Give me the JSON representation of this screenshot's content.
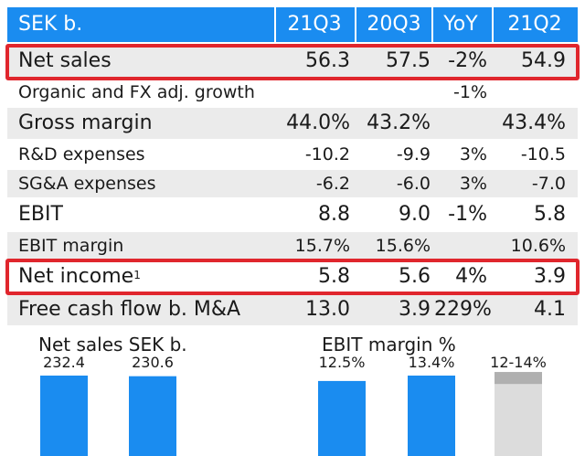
{
  "table": {
    "header": {
      "label": "SEK b.",
      "cols": [
        "21Q3",
        "20Q3",
        "YoY",
        "21Q2"
      ]
    },
    "rows": [
      {
        "label": "Net sales",
        "q3_21": "56.3",
        "q3_20": "57.5",
        "yoy": "-2%",
        "q2_21": "54.9"
      },
      {
        "label": "Organic and FX adj. growth",
        "q3_21": "",
        "q3_20": "",
        "yoy": "-1%",
        "q2_21": ""
      },
      {
        "label": "Gross margin",
        "q3_21": "44.0%",
        "q3_20": "43.2%",
        "yoy": "",
        "q2_21": "43.4%"
      },
      {
        "label": "R&D expenses",
        "q3_21": "-10.2",
        "q3_20": "-9.9",
        "yoy": "3%",
        "q2_21": "-10.5"
      },
      {
        "label": "SG&A expenses",
        "q3_21": "-6.2",
        "q3_20": "-6.0",
        "yoy": "3%",
        "q2_21": "-7.0"
      },
      {
        "label": "EBIT",
        "q3_21": "8.8",
        "q3_20": "9.0",
        "yoy": "-1%",
        "q2_21": "5.8"
      },
      {
        "label": "EBIT margin",
        "q3_21": "15.7%",
        "q3_20": "15.6%",
        "yoy": "",
        "q2_21": "10.6%"
      },
      {
        "label": "Net income",
        "sup": "1",
        "q3_21": "5.8",
        "q3_20": "5.6",
        "yoy": "4%",
        "q2_21": "3.9"
      },
      {
        "label": "Free cash flow b. M&A",
        "q3_21": "13.0",
        "q3_20": "3.9",
        "yoy": "229%",
        "q2_21": "4.1"
      }
    ]
  },
  "chart_data": [
    {
      "type": "bar",
      "title": "Net sales SEK b.",
      "values": [
        232.4,
        230.6
      ],
      "value_labels": [
        "232.4",
        "230.6"
      ],
      "colors": [
        "#1a8cf0",
        "#1a8cf0"
      ]
    },
    {
      "type": "bar",
      "title": "EBIT margin %",
      "values": [
        12.5,
        13.4,
        14
      ],
      "range_low": [
        null,
        null,
        12
      ],
      "value_labels": [
        "12.5%",
        "13.4%",
        "12-14%"
      ],
      "colors": [
        "#1a8cf0",
        "#1a8cf0",
        "#b0b0b0"
      ],
      "range_colors": [
        "",
        "",
        "#dcdcdc"
      ]
    }
  ],
  "colors": {
    "accent": "#1a8cf0",
    "highlight": "#e0262d",
    "row_shade": "#ebebeb",
    "target_range": "#b0b0b0"
  }
}
